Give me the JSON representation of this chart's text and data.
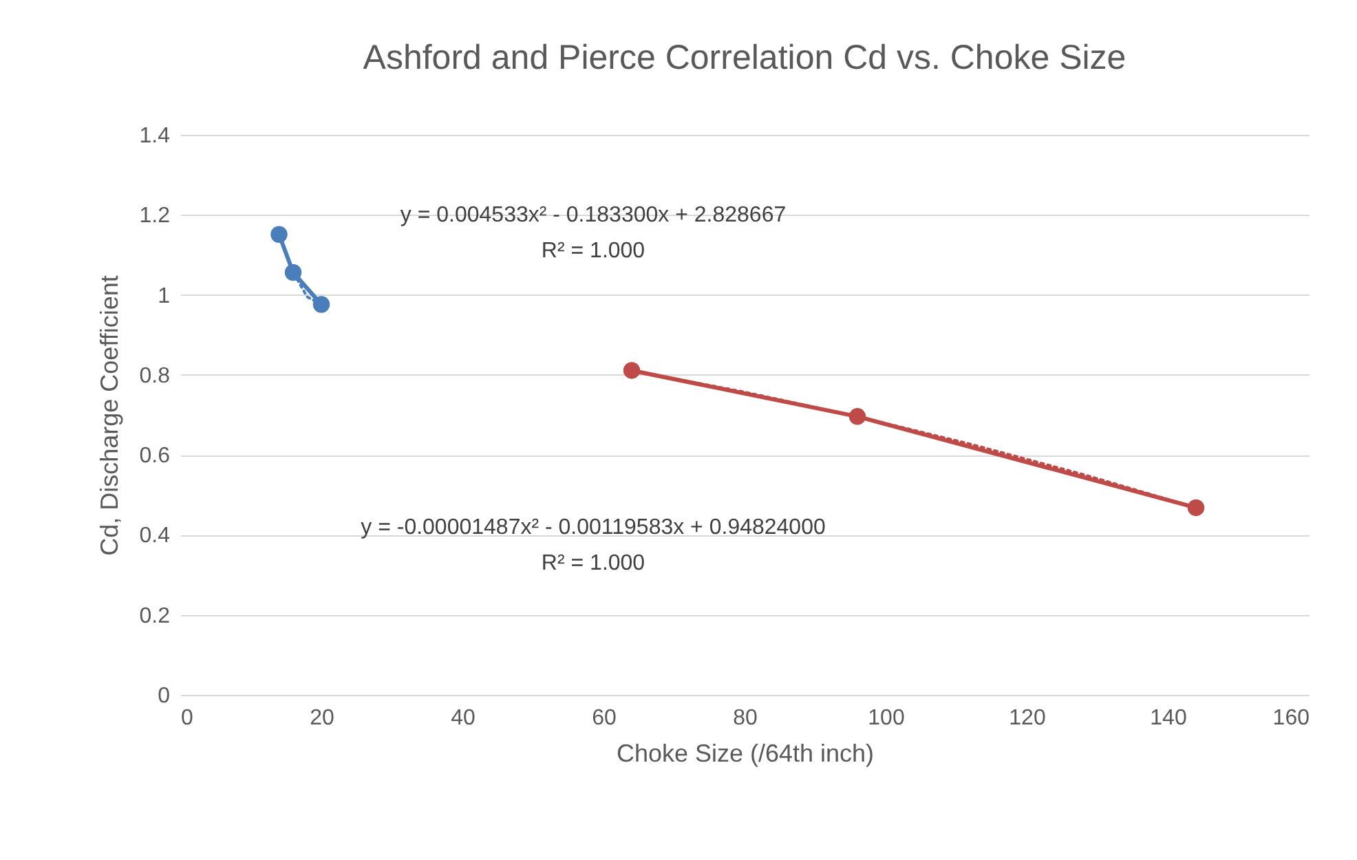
{
  "chart_data": {
    "type": "line",
    "title": "Ashford and Pierce Correlation Cd vs. Choke Size",
    "xlabel": "Choke Size (/64th inch)",
    "ylabel": "Cd, Discharge Coefficient",
    "series": [
      {
        "marker": "circle",
        "line_style": "solid",
        "color": "#4a7ebb",
        "x": [
          14,
          16,
          20
        ],
        "values": [
          1.151,
          1.056,
          0.976
        ]
      },
      {
        "marker": "circle",
        "line_style": "solid",
        "color": "#be4b48",
        "x": [
          64,
          96,
          144
        ],
        "values": [
          0.811,
          0.696,
          0.468
        ]
      },
      {
        "marker": "none",
        "line_style": "dotted",
        "color": "#4a7ebb",
        "x": [
          14,
          16,
          18,
          20
        ],
        "values": [
          1.151,
          1.056,
          0.995,
          0.976
        ]
      },
      {
        "marker": "none",
        "line_style": "dotted",
        "color": "#be4b48",
        "x": [
          64,
          80,
          96,
          112,
          128,
          144
        ],
        "values": [
          0.811,
          0.757,
          0.696,
          0.627,
          0.551,
          0.468
        ]
      }
    ],
    "annotations": [
      "y = 0.004533x² - 0.183300x + 2.828667",
      "R² = 1.000",
      "y = -0.00001487x² - 0.00119583x + 0.94824000",
      "R² = 1.000"
    ],
    "xlim": [
      0,
      160
    ],
    "xticks": [
      0,
      20,
      40,
      60,
      80,
      100,
      120,
      140,
      160
    ],
    "ylim": [
      0,
      1.4
    ],
    "yticks": [
      0,
      0.2,
      0.4,
      0.6,
      0.8,
      1,
      1.2,
      1.4
    ],
    "grid": "y"
  }
}
